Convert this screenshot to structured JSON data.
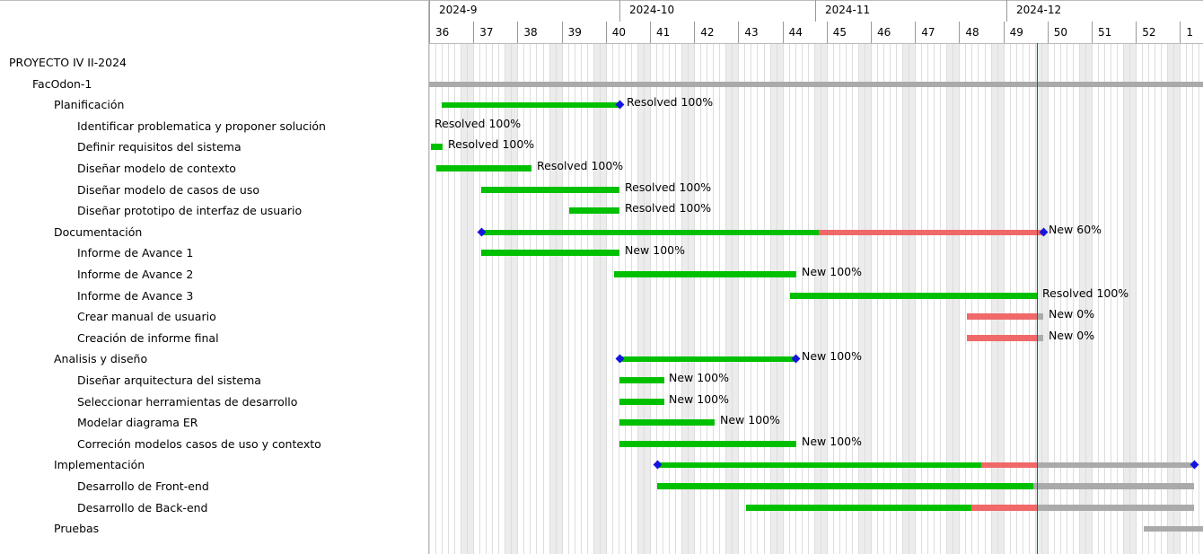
{
  "gantt": {
    "months": [
      "2024-9",
      "2024-10",
      "2024-11",
      "2024-12"
    ],
    "weeks": [
      "36",
      "37",
      "38",
      "39",
      "40",
      "41",
      "42",
      "43",
      "44",
      "45",
      "46",
      "47",
      "48",
      "49",
      "50",
      "51",
      "52",
      "1"
    ]
  },
  "colors": {
    "done": "#00c000",
    "late": "#f06868",
    "todo": "#aaaaaa",
    "milestone": "#1515e0",
    "today": "#ff0000"
  },
  "rows": [
    {
      "subject": "PROYECTO IV II-2024",
      "level": 0
    },
    {
      "subject": "FacOdon-1",
      "level": 1
    },
    {
      "subject": "Planificación",
      "level": 2,
      "status": "Resolved 100%"
    },
    {
      "subject": "Identificar problematica y proponer solución",
      "level": 3,
      "status": "Resolved 100%"
    },
    {
      "subject": "Definir requisitos del sistema",
      "level": 3,
      "status": "Resolved 100%"
    },
    {
      "subject": "Diseñar modelo de contexto",
      "level": 3,
      "status": "Resolved 100%"
    },
    {
      "subject": "Diseñar modelo de casos de uso",
      "level": 3,
      "status": "Resolved 100%"
    },
    {
      "subject": "Diseñar prototipo de interfaz de usuario",
      "level": 3,
      "status": "Resolved 100%"
    },
    {
      "subject": "Documentación",
      "level": 2,
      "status": "New 60%"
    },
    {
      "subject": "Informe de Avance 1",
      "level": 3,
      "status": "New 100%"
    },
    {
      "subject": "Informe de Avance 2",
      "level": 3,
      "status": "New 100%"
    },
    {
      "subject": "Informe de Avance 3",
      "level": 3,
      "status": "Resolved 100%"
    },
    {
      "subject": "Crear manual de usuario",
      "level": 3,
      "status": "New 0%"
    },
    {
      "subject": "Creación de informe final",
      "level": 3,
      "status": "New 0%"
    },
    {
      "subject": "Analisis y diseño",
      "level": 2,
      "status": "New 100%"
    },
    {
      "subject": "Diseñar arquitectura del sistema",
      "level": 3,
      "status": "New 100%"
    },
    {
      "subject": "Seleccionar herramientas de desarrollo",
      "level": 3,
      "status": "New 100%"
    },
    {
      "subject": "Modelar diagrama ER",
      "level": 3,
      "status": "New 100%"
    },
    {
      "subject": "Correción modelos casos de uso y contexto",
      "level": 3,
      "status": "New 100%"
    },
    {
      "subject": "Implementación",
      "level": 2
    },
    {
      "subject": "Desarrollo de Front-end",
      "level": 3
    },
    {
      "subject": "Desarrollo de Back-end",
      "level": 3
    },
    {
      "subject": "Pruebas",
      "level": 2
    }
  ]
}
